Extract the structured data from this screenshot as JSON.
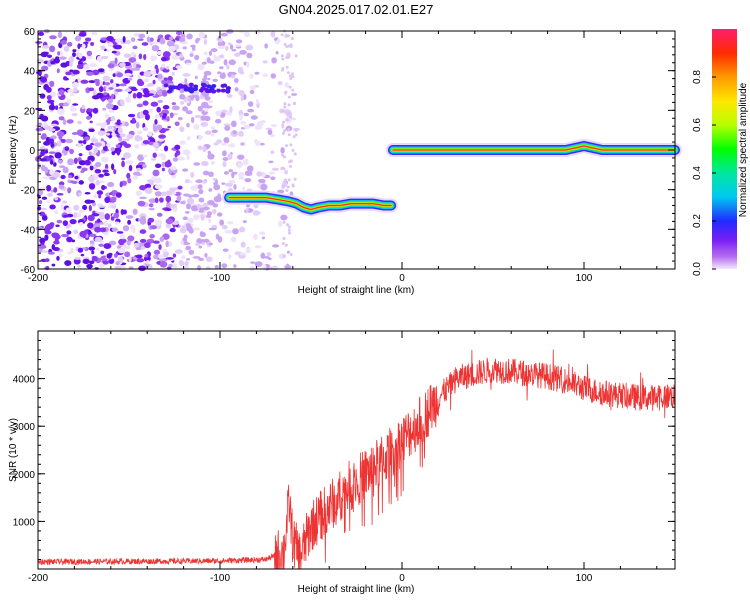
{
  "title": "GN04.2025.017.02.01.E27",
  "chart_data": [
    {
      "type": "heatmap",
      "xlabel": "Height of straight line (km)",
      "ylabel": "Frequency (Hz)",
      "xlim": [
        -200,
        150
      ],
      "ylim": [
        -60,
        60
      ],
      "x_ticks": [
        -200,
        -100,
        0,
        100
      ],
      "y_ticks": [
        -60,
        -40,
        -20,
        0,
        20,
        40,
        60
      ],
      "colorbar": {
        "label": "Normalized spectral amplitude",
        "range": [
          0,
          1
        ],
        "ticks": [
          0.0,
          0.2,
          0.4,
          0.6,
          0.8
        ],
        "tick_labels": [
          "0.0",
          "0.2",
          "0.4",
          "0.6",
          "0.8"
        ]
      },
      "ridges": [
        {
          "x": [
            -95,
            -85,
            -75,
            -68,
            -62,
            -58,
            -54,
            -50,
            -46,
            -40,
            -34,
            -28,
            -22,
            -16,
            -10,
            -6
          ],
          "y": [
            -24,
            -24,
            -24,
            -25,
            -26,
            -27,
            -29,
            -30,
            -29,
            -28,
            -28,
            -27,
            -27,
            -27,
            -28,
            -28
          ]
        },
        {
          "x": [
            -5,
            0,
            10,
            20,
            40,
            60,
            80,
            90,
            95,
            100,
            105,
            110,
            130,
            150
          ],
          "y": [
            0,
            0,
            0,
            0,
            0,
            0,
            0,
            0,
            1,
            2,
            1,
            0,
            0,
            0
          ]
        }
      ],
      "noise_region_x": [
        -200,
        -58
      ]
    },
    {
      "type": "line",
      "xlabel": "Height of straight line (km)",
      "ylabel": "SNR (10 * v/v)",
      "xlim": [
        -200,
        150
      ],
      "ylim": [
        0,
        5000
      ],
      "x_ticks": [
        -200,
        -100,
        0,
        100
      ],
      "y_ticks": [
        1000,
        2000,
        3000,
        4000
      ],
      "series": [
        {
          "color": "#ee3333",
          "trend_x": [
            -200,
            -150,
            -100,
            -75,
            -65,
            -62,
            -60,
            -56,
            -50,
            -40,
            -30,
            -20,
            -10,
            0,
            10,
            20,
            30,
            40,
            50,
            60,
            70,
            80,
            90,
            100,
            110,
            120,
            130,
            140,
            150
          ],
          "trend_y": [
            150,
            160,
            170,
            200,
            350,
            1400,
            600,
            250,
            900,
            1300,
            1700,
            2000,
            2300,
            2700,
            3100,
            3600,
            4000,
            4100,
            4200,
            4150,
            4100,
            4050,
            3950,
            3800,
            3700,
            3650,
            3600,
            3600,
            3650
          ]
        }
      ]
    }
  ]
}
